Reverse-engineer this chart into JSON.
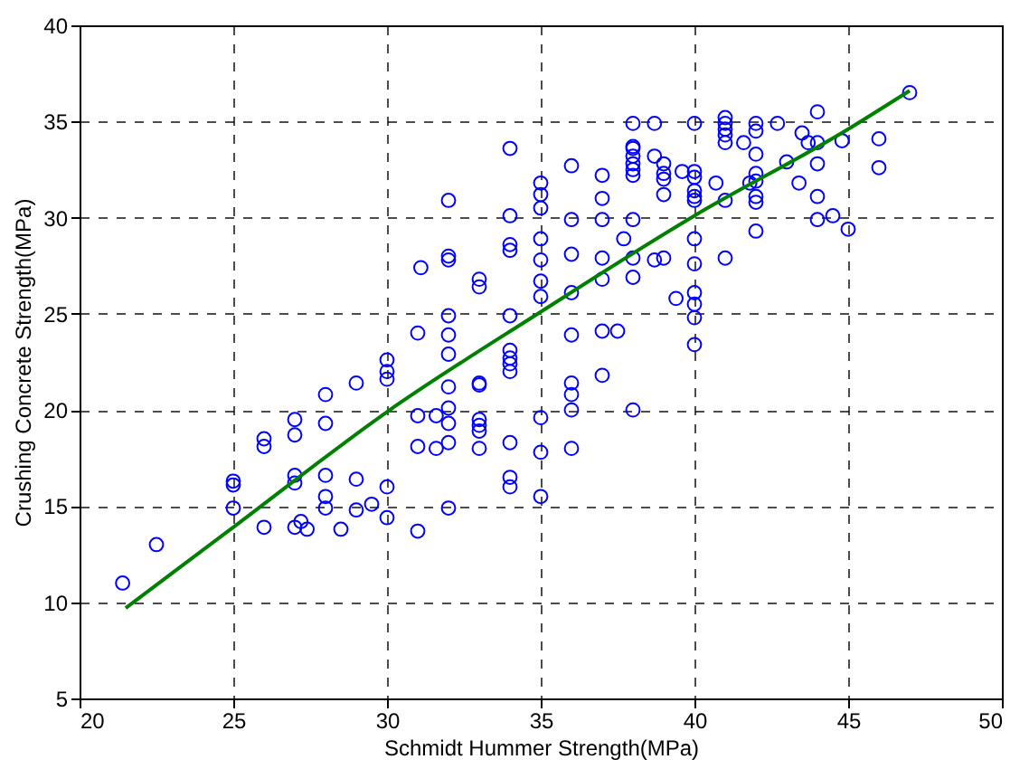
{
  "chart_data": {
    "type": "scatter",
    "xlabel": "Schmidt Hummer Strength(MPa)",
    "ylabel": "Crushing Concrete Strength(MPa)",
    "xlim": [
      20,
      50
    ],
    "xticks": [
      20,
      25,
      30,
      35,
      40,
      45,
      50
    ],
    "ylim": [
      5,
      40
    ],
    "yticks": [
      5,
      10,
      15,
      20,
      25,
      30,
      35,
      40
    ],
    "grid": true,
    "series": [
      {
        "color": "#0000ff",
        "marker": "circle",
        "x": [
          21.4,
          22.5,
          25,
          25,
          25,
          26,
          26,
          26,
          27,
          27,
          27,
          27,
          27,
          27.2,
          27.4,
          28,
          28,
          28,
          28,
          28,
          28.5,
          29,
          29,
          29,
          29.5,
          30,
          30,
          30,
          30,
          30,
          31,
          31,
          31,
          31,
          31.1,
          31.6,
          31.6,
          32,
          32,
          32,
          32,
          32,
          32,
          32,
          32,
          32,
          32,
          32,
          33,
          33,
          33,
          33,
          33,
          33,
          33,
          33,
          34,
          34,
          34,
          34,
          34,
          34,
          34,
          34,
          34,
          34,
          34,
          34,
          35,
          35,
          35,
          35,
          35,
          35,
          35,
          35,
          35,
          35,
          36,
          36,
          36,
          36,
          36,
          36,
          36,
          36,
          36,
          37,
          37,
          37,
          37,
          37,
          37,
          37,
          37.5,
          37.7,
          38,
          38,
          38,
          38,
          38,
          38,
          38,
          38,
          38,
          38,
          38,
          38.7,
          38.7,
          38.7,
          39,
          39,
          39,
          39,
          39,
          39.4,
          39.6,
          40,
          40,
          40,
          40,
          40,
          40,
          40,
          40,
          40,
          40,
          40,
          40,
          40.7,
          41,
          41,
          41,
          41,
          41,
          41,
          41,
          41.6,
          41.8,
          42,
          42,
          42,
          42,
          42,
          42,
          42,
          42,
          42.7,
          43,
          43.4,
          43.5,
          43.7,
          44,
          44,
          44,
          44,
          44,
          44.5,
          44.8,
          45,
          46,
          46,
          47
        ],
        "values": [
          11.0,
          13.0,
          16.3,
          16.1,
          14.9,
          18.5,
          18.1,
          13.9,
          19.5,
          18.7,
          16.6,
          16.2,
          13.9,
          14.2,
          13.8,
          20.8,
          19.3,
          16.6,
          15.5,
          14.9,
          13.8,
          21.4,
          16.4,
          14.8,
          15.1,
          22.6,
          22.0,
          21.6,
          16.0,
          14.4,
          24.0,
          19.7,
          18.1,
          13.7,
          27.4,
          19.7,
          18.0,
          30.9,
          28.0,
          27.8,
          24.9,
          23.9,
          22.9,
          21.2,
          20.1,
          19.3,
          18.3,
          14.9,
          26.8,
          26.4,
          21.4,
          21.3,
          19.5,
          19.2,
          18.9,
          18.0,
          33.6,
          30.1,
          28.6,
          28.3,
          24.9,
          23.1,
          22.7,
          22.4,
          22.0,
          18.3,
          16.5,
          16.0,
          31.8,
          31.2,
          30.5,
          28.9,
          27.8,
          26.7,
          25.9,
          19.6,
          17.8,
          15.5,
          32.7,
          29.9,
          28.1,
          26.1,
          23.9,
          21.4,
          20.8,
          20.0,
          18.0,
          32.2,
          31.0,
          29.9,
          27.9,
          26.8,
          24.1,
          21.8,
          24.1,
          28.9,
          34.9,
          33.7,
          33.6,
          33.2,
          32.8,
          32.5,
          32.2,
          29.9,
          27.9,
          26.9,
          20.0,
          34.9,
          33.2,
          27.8,
          32.8,
          32.3,
          32.0,
          31.2,
          27.9,
          25.8,
          32.4,
          34.9,
          32.4,
          32.1,
          31.4,
          31.1,
          30.9,
          28.9,
          27.6,
          26.1,
          25.5,
          24.8,
          23.4,
          31.8,
          35.2,
          34.9,
          34.6,
          34.3,
          33.9,
          30.9,
          27.9,
          33.9,
          31.8,
          34.9,
          34.5,
          33.3,
          32.3,
          31.9,
          31.1,
          30.8,
          29.3,
          34.9,
          32.9,
          31.8,
          34.4,
          33.9,
          35.5,
          33.9,
          32.8,
          31.1,
          29.9,
          30.1,
          34.0,
          29.4,
          34.1,
          32.6,
          36.5
        ]
      },
      {
        "type": "line",
        "color": "#008000",
        "x": [
          21.5,
          25,
          30,
          35,
          40,
          45,
          47
        ],
        "values": [
          9.7,
          13.9,
          19.9,
          25.1,
          30.1,
          34.6,
          36.6
        ]
      }
    ]
  }
}
